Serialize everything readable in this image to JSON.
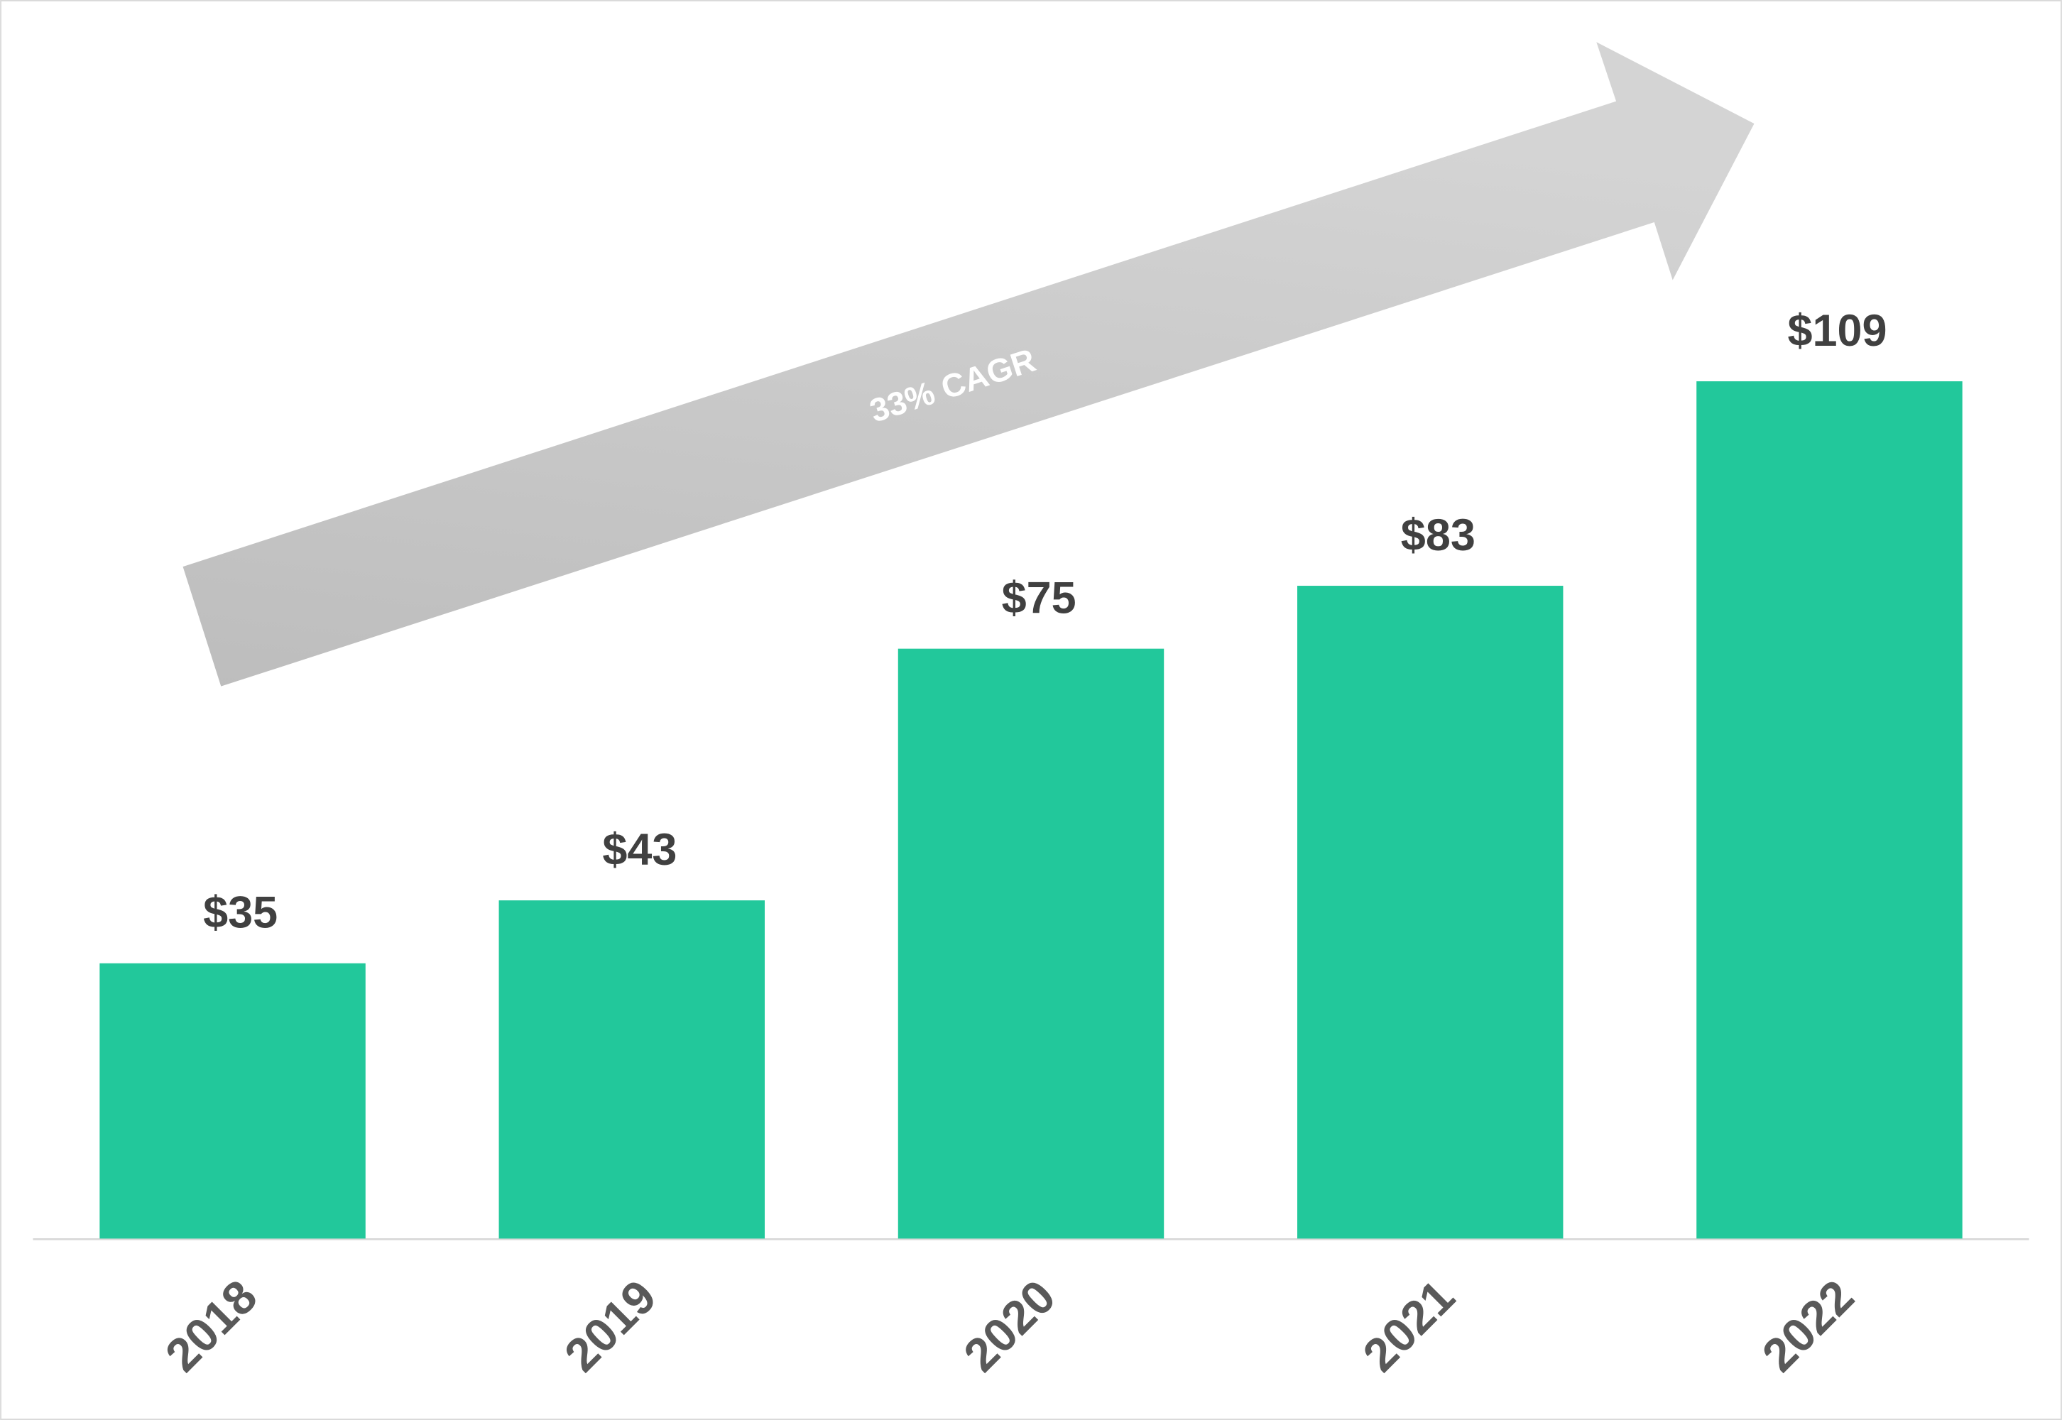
{
  "chart_data": {
    "type": "bar",
    "categories": [
      "2018",
      "2019",
      "2020",
      "2021",
      "2022"
    ],
    "values": [
      35,
      43,
      75,
      83,
      109
    ],
    "value_labels": [
      "$35",
      "$43",
      "$75",
      "$83",
      "$109"
    ],
    "color": "#22c89b",
    "annotation": "33% CAGR"
  }
}
